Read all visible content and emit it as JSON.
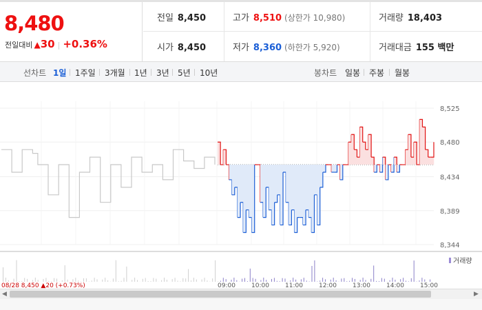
{
  "price": {
    "current": "8,480",
    "diff_label": "전일대비",
    "diff_arrow": "▲",
    "diff_value": "30",
    "diff_pct": "+0.36%"
  },
  "stats": {
    "prev_close": {
      "label": "전일",
      "value": "8,450"
    },
    "high": {
      "label": "고가",
      "value": "8,510",
      "sub": "(상한가 10,980)"
    },
    "volume": {
      "label": "거래량",
      "value": "18,403"
    },
    "open": {
      "label": "시가",
      "value": "8,450"
    },
    "low": {
      "label": "저가",
      "value": "8,360",
      "sub": "(하한가 5,920)"
    },
    "amount": {
      "label": "거래대금",
      "value": "155 백만"
    }
  },
  "tabs": {
    "line_label": "선차트",
    "line_tabs": [
      "1일",
      "1주일",
      "3개월",
      "1년",
      "3년",
      "5년",
      "10년"
    ],
    "candle_label": "봉차트",
    "candle_tabs": [
      "일봉",
      "주봉",
      "월봉"
    ]
  },
  "colors": {
    "up": "#e11111",
    "down": "#1a5ed6",
    "prev_day": "#c8c8c8"
  },
  "chart_data": {
    "type": "line",
    "y_ticks": [
      "8,525",
      "8,480",
      "8,434",
      "8,389",
      "8,344"
    ],
    "ylim": [
      8344,
      8525
    ],
    "baseline": 8450,
    "volume_legend": "거래량",
    "series": [
      {
        "values_prev": [
          8470,
          8470,
          8440,
          8440,
          8470,
          8470,
          8465,
          8450,
          8450,
          8410,
          8410,
          8450,
          8450,
          8380,
          8380,
          8440,
          8440,
          8460,
          8460,
          8400,
          8400,
          8450,
          8450,
          8420,
          8420,
          8460,
          8460,
          8440,
          8440,
          8450,
          8450,
          8430,
          8430,
          8470,
          8470,
          8455,
          8455,
          8445,
          8445,
          8460,
          8460,
          8450
        ]
      },
      {
        "values_today": [
          8480,
          8450,
          8470,
          8450,
          8430,
          8410,
          8420,
          8380,
          8400,
          8360,
          8390,
          8380,
          8360,
          8450,
          8450,
          8400,
          8380,
          8420,
          8390,
          8370,
          8400,
          8410,
          8370,
          8440,
          8400,
          8370,
          8390,
          8360,
          8380,
          8380,
          8370,
          8390,
          8380,
          8360,
          8410,
          8370,
          8420,
          8440,
          8450,
          8450,
          8440,
          8440,
          8450,
          8430,
          8450,
          8450,
          8480,
          8490,
          8470,
          8460,
          8500,
          8480,
          8470,
          8490,
          8460,
          8440,
          8450,
          8440,
          8460,
          8430,
          8450,
          8440,
          8460,
          8440,
          8450,
          8450,
          8470,
          8490,
          8460,
          8480,
          8450,
          8510,
          8500,
          8470,
          8460,
          8460,
          8480
        ]
      }
    ],
    "x_labels": [
      "09:00",
      "10:00",
      "11:00",
      "12:00",
      "13:00",
      "14:00",
      "15:00"
    ],
    "footer_text": "08/28 8,450 ▲20 (+0.73%)"
  }
}
